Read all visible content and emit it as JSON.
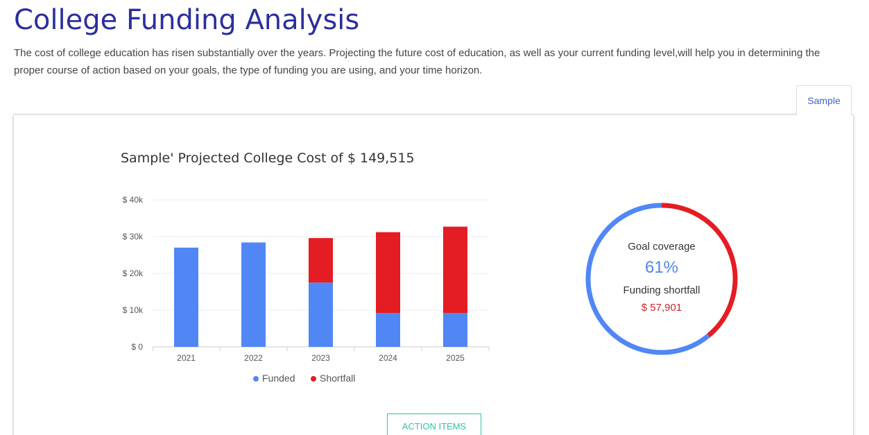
{
  "page": {
    "title": "College Funding Analysis",
    "intro": "The cost of college education has risen substantially over the years. Projecting the future cost of education, as well as your current funding level,will help you in determining the proper course of action based on your goals, the type of funding you are using, and your time horizon."
  },
  "tabs": [
    {
      "label": "Sample",
      "active": true
    }
  ],
  "card": {
    "chart_title": "Sample' Projected College Cost of $ 149,515",
    "summary": {
      "goal_label": "Goal coverage",
      "goal_value": "61%",
      "shortfall_label": "Funding shortfall",
      "shortfall_value": "$ 57,901"
    },
    "action_button": "ACTION ITEMS"
  },
  "colors": {
    "funded": "#5087f5",
    "shortfall": "#e41c23",
    "title": "#2b2f9c",
    "accent_button": "#2ec4a6"
  },
  "chart_data": [
    {
      "type": "bar",
      "stacked": true,
      "title": "Sample' Projected College Cost of $ 149,515",
      "categories": [
        "2021",
        "2022",
        "2023",
        "2024",
        "2025"
      ],
      "series": [
        {
          "name": "Funded",
          "color": "#5087f5",
          "values": [
            27000,
            28400,
            17500,
            9200,
            9200
          ]
        },
        {
          "name": "Shortfall",
          "color": "#e41c23",
          "values": [
            0,
            0,
            12100,
            22000,
            23500
          ]
        }
      ],
      "yticks": [
        "$ 0",
        "$ 10k",
        "$ 20k",
        "$ 30k",
        "$ 40k"
      ],
      "ylim": [
        0,
        40000
      ],
      "grid": true,
      "legend": "bottom"
    },
    {
      "type": "pie",
      "donut": true,
      "slices": [
        {
          "name": "Funded",
          "color": "#5087f5",
          "value": 61
        },
        {
          "name": "Shortfall",
          "color": "#e41c23",
          "value": 39
        }
      ]
    }
  ]
}
